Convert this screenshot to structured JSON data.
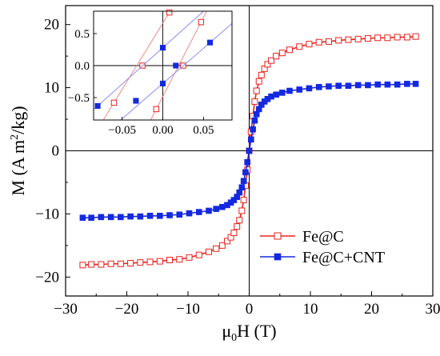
{
  "chart_data": [
    {
      "type": "line",
      "xlabel": "μ₀H (T)",
      "ylabel": "M (A m²/kg)",
      "xlim": [
        -30,
        30
      ],
      "ylim": [
        -23,
        23
      ],
      "xticks": [
        -30,
        -20,
        -10,
        0,
        10,
        20,
        30
      ],
      "yticks": [
        -20,
        -10,
        0,
        10,
        20
      ],
      "legend_position": "bottom-right",
      "series": [
        {
          "name": "Fe@C",
          "color": "#e8231d",
          "marker": "open-square",
          "x": [
            -27.2,
            -25.8,
            -24.2,
            -22.6,
            -21.0,
            -19.4,
            -17.8,
            -16.2,
            -14.6,
            -13.0,
            -11.4,
            -9.8,
            -8.2,
            -6.6,
            -5.4,
            -4.4,
            -3.6,
            -3.0,
            -2.5,
            -2.0,
            -1.6,
            -1.2,
            -0.9,
            -0.6,
            -0.3,
            0.0,
            0.3,
            0.6,
            0.9,
            1.2,
            1.6,
            2.0,
            2.5,
            3.0,
            3.6,
            4.4,
            5.4,
            6.6,
            8.2,
            9.8,
            11.4,
            13.0,
            14.6,
            16.2,
            17.8,
            19.4,
            21.0,
            22.6,
            24.2,
            25.8,
            27.2
          ],
          "y": [
            -18.1,
            -18.0,
            -18.0,
            -17.9,
            -17.9,
            -17.8,
            -17.7,
            -17.6,
            -17.5,
            -17.3,
            -17.2,
            -16.9,
            -16.5,
            -16.0,
            -15.5,
            -15.0,
            -14.3,
            -13.7,
            -13.0,
            -12.0,
            -11.0,
            -9.5,
            -7.8,
            -5.5,
            -3.0,
            0.0,
            3.0,
            5.5,
            7.8,
            9.5,
            11.0,
            12.0,
            13.0,
            13.7,
            14.3,
            15.0,
            15.5,
            16.0,
            16.5,
            16.9,
            17.2,
            17.3,
            17.5,
            17.6,
            17.7,
            17.8,
            17.9,
            17.9,
            18.0,
            18.0,
            18.1
          ]
        },
        {
          "name": "Fe@C+CNT",
          "color": "#1428e0",
          "marker": "filled-square",
          "x": [
            -27.2,
            -25.8,
            -24.2,
            -22.6,
            -21.0,
            -19.4,
            -17.8,
            -16.2,
            -14.6,
            -13.0,
            -11.4,
            -9.8,
            -8.2,
            -6.6,
            -5.4,
            -4.4,
            -3.6,
            -3.0,
            -2.5,
            -2.0,
            -1.6,
            -1.2,
            -0.9,
            -0.6,
            -0.3,
            0.0,
            0.3,
            0.6,
            0.9,
            1.2,
            1.6,
            2.0,
            2.5,
            3.0,
            3.6,
            4.4,
            5.4,
            6.6,
            8.2,
            9.8,
            11.4,
            13.0,
            14.6,
            16.2,
            17.8,
            19.4,
            21.0,
            22.6,
            24.2,
            25.8,
            27.2
          ],
          "y": [
            -10.6,
            -10.6,
            -10.5,
            -10.5,
            -10.5,
            -10.4,
            -10.4,
            -10.3,
            -10.3,
            -10.2,
            -10.1,
            -9.9,
            -9.7,
            -9.5,
            -9.2,
            -8.9,
            -8.6,
            -8.2,
            -7.8,
            -7.3,
            -6.6,
            -5.8,
            -4.8,
            -3.4,
            -1.8,
            0.0,
            1.8,
            3.4,
            4.8,
            5.8,
            6.6,
            7.3,
            7.8,
            8.2,
            8.6,
            8.9,
            9.2,
            9.5,
            9.7,
            9.9,
            10.1,
            10.2,
            10.3,
            10.3,
            10.4,
            10.4,
            10.5,
            10.5,
            10.5,
            10.6,
            10.6
          ]
        }
      ]
    },
    {
      "type": "line",
      "inset": true,
      "xlim": [
        -0.085,
        0.085
      ],
      "ylim": [
        -0.85,
        0.85
      ],
      "xticks": [
        -0.05,
        0.0,
        0.05
      ],
      "xtick_labels": [
        "-0.05",
        "0.00",
        "0.05"
      ],
      "yticks": [
        -0.5,
        0.0,
        0.5
      ],
      "ytick_labels": [
        "-0.5",
        "0.0",
        "0.5"
      ],
      "series": [
        {
          "name": "Fe@C",
          "color": "#e8231d",
          "marker": "open-square",
          "branches": [
            {
              "x": [
                -0.06,
                -0.025,
                0.008
              ],
              "y": [
                -0.58,
                0.0,
                0.83
              ]
            },
            {
              "x": [
                -0.008,
                0.025,
                0.047
              ],
              "y": [
                -0.68,
                0.0,
                0.68
              ]
            }
          ]
        },
        {
          "name": "Fe@C+CNT",
          "color": "#1428e0",
          "marker": "filled-square",
          "branches": [
            {
              "x": [
                -0.08,
                -0.033,
                0.0
              ],
              "y": [
                -0.63,
                -0.55,
                0.28
              ]
            },
            {
              "x": [
                0.0,
                0.016,
                0.058
              ],
              "y": [
                -0.28,
                0.0,
                0.36
              ]
            }
          ]
        }
      ]
    }
  ]
}
